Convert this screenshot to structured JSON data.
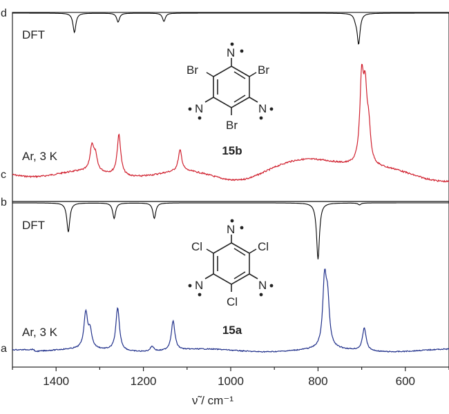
{
  "chart_data": {
    "type": "line",
    "xlabel": "ν̃ / cm⁻¹",
    "xlim": [
      1500,
      500
    ],
    "x_ticks": [
      1400,
      1200,
      1000,
      800,
      600
    ],
    "trace_letters": [
      "d",
      "c",
      "b",
      "a"
    ],
    "panels": [
      {
        "molecule": "15b",
        "traces": [
          {
            "letter": "d",
            "label": "DFT",
            "kind": "computed",
            "color": "#000000",
            "peaks": [
              [
                1358,
                0.56
              ],
              [
                1258,
                0.26
              ],
              [
                1153,
                0.24
              ],
              [
                714,
                0.12
              ],
              [
                707,
                0.88
              ]
            ]
          },
          {
            "letter": "c",
            "label": "Ar, 3 K",
            "kind": "measured",
            "color": "#d0202e",
            "peaks": [
              [
                1318,
                0.3
              ],
              [
                1310,
                0.18
              ],
              [
                1256,
                0.5
              ],
              [
                1116,
                0.26
              ],
              [
                700,
                1.0
              ],
              [
                692,
                0.78
              ],
              [
                684,
                0.4
              ]
            ]
          }
        ]
      },
      {
        "molecule": "15a",
        "traces": [
          {
            "letter": "b",
            "label": "DFT",
            "kind": "computed",
            "color": "#000000",
            "peaks": [
              [
                1372,
                0.45
              ],
              [
                1267,
                0.24
              ],
              [
                1175,
                0.24
              ],
              [
                800,
                0.87
              ],
              [
                705,
                0.03
              ]
            ]
          },
          {
            "letter": "a",
            "label": "Ar, 3 K",
            "kind": "measured",
            "color": "#1f2f8a",
            "peaks": [
              [
                1332,
                0.55
              ],
              [
                1322,
                0.25
              ],
              [
                1259,
                0.65
              ],
              [
                1180,
                0.08
              ],
              [
                1132,
                0.45
              ],
              [
                785,
                1.0
              ],
              [
                778,
                0.65
              ],
              [
                694,
                0.35
              ]
            ]
          }
        ]
      }
    ],
    "structures": [
      {
        "id": "15b",
        "name": "15b",
        "halogen": "Br",
        "radical_atom": "N"
      },
      {
        "id": "15a",
        "name": "15a",
        "halogen": "Cl",
        "radical_atom": "N"
      }
    ]
  }
}
